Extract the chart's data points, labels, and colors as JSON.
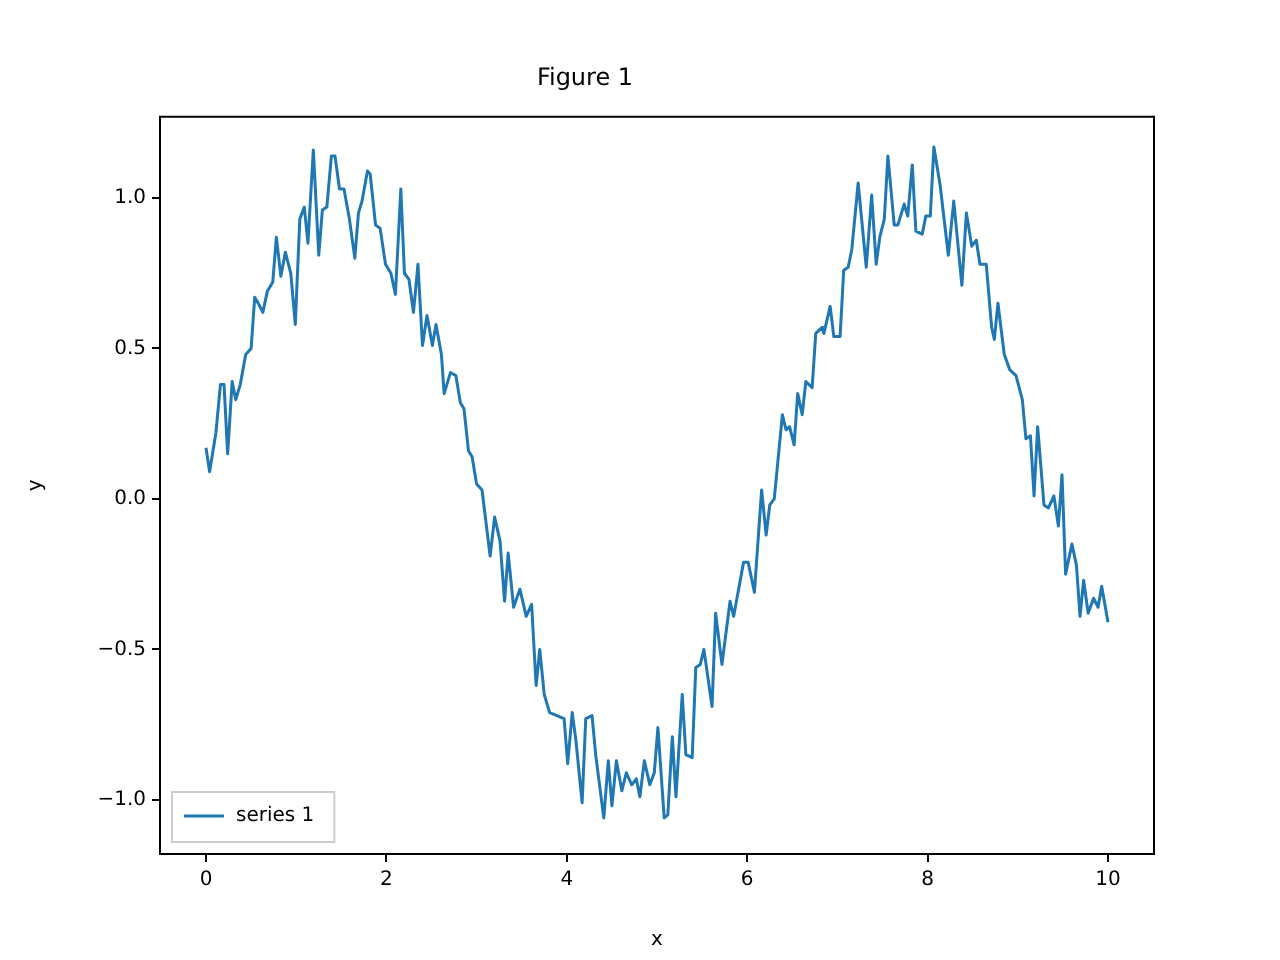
{
  "chart_data": {
    "type": "line",
    "title": "Figure 1",
    "xlabel": "x",
    "ylabel": "y",
    "xlim": [
      -0.51,
      10.51
    ],
    "ylim": [
      -1.18,
      1.27
    ],
    "xticks": [
      0,
      2,
      4,
      6,
      8,
      10
    ],
    "yticks": [
      {
        "value": -1,
        "label": "−1.0"
      },
      {
        "value": -0.5,
        "label": "−0.5"
      },
      {
        "value": 0,
        "label": "0.0"
      },
      {
        "value": 0.5,
        "label": "0.5"
      },
      {
        "value": 1,
        "label": "1.0"
      }
    ],
    "grid": false,
    "legend": "bottom left",
    "marker": "none",
    "line_style": "solid",
    "x": [
      0,
      0.04,
      0.11,
      0.16,
      0.2,
      0.24,
      0.29,
      0.33,
      0.38,
      0.44,
      0.5,
      0.54,
      0.58,
      0.63,
      0.68,
      0.74,
      0.78,
      0.83,
      0.88,
      0.94,
      0.99,
      1.04,
      1.09,
      1.13,
      1.19,
      1.25,
      1.29,
      1.34,
      1.39,
      1.43,
      1.48,
      1.53,
      1.59,
      1.65,
      1.69,
      1.73,
      1.79,
      1.82,
      1.88,
      1.93,
      1.99,
      2.05,
      2.1,
      2.16,
      2.2,
      2.25,
      2.3,
      2.35,
      2.4,
      2.45,
      2.51,
      2.55,
      2.61,
      2.64,
      2.71,
      2.77,
      2.82,
      2.86,
      2.91,
      2.95,
      3,
      3.06,
      3.15,
      3.2,
      3.26,
      3.31,
      3.35,
      3.41,
      3.48,
      3.55,
      3.61,
      3.66,
      3.7,
      3.75,
      3.81,
      3.97,
      4.01,
      4.06,
      4.1,
      4.17,
      4.21,
      4.28,
      4.32,
      4.41,
      4.46,
      4.5,
      4.55,
      4.61,
      4.66,
      4.72,
      4.77,
      4.81,
      4.86,
      4.92,
      4.97,
      5.01,
      5.08,
      5.12,
      5.17,
      5.21,
      5.28,
      5.32,
      5.39,
      5.43,
      5.48,
      5.52,
      5.61,
      5.65,
      5.72,
      5.81,
      5.85,
      5.96,
      6.01,
      6.08,
      6.16,
      6.21,
      6.25,
      6.3,
      6.39,
      6.43,
      6.47,
      6.52,
      6.56,
      6.61,
      6.65,
      6.72,
      6.76,
      6.83,
      6.85,
      6.92,
      6.96,
      7.03,
      7.07,
      7.12,
      7.16,
      7.23,
      7.32,
      7.38,
      7.43,
      7.47,
      7.52,
      7.56,
      7.63,
      7.67,
      7.74,
      7.78,
      7.83,
      7.87,
      7.94,
      7.98,
      8.03,
      8.07,
      8.14,
      8.23,
      8.29,
      8.38,
      8.43,
      8.49,
      8.54,
      8.58,
      8.65,
      8.71,
      8.74,
      8.78,
      8.85,
      8.91,
      8.98,
      9.05,
      9.09,
      9.14,
      9.18,
      9.22,
      9.29,
      9.34,
      9.4,
      9.45,
      9.49,
      9.53,
      9.6,
      9.65,
      9.69,
      9.73,
      9.78,
      9.84,
      9.89,
      9.93,
      10
    ],
    "series": [
      {
        "name": "series 1",
        "color": "#1f77b4",
        "values": [
          0.17,
          0.09,
          0.22,
          0.38,
          0.38,
          0.15,
          0.39,
          0.33,
          0.38,
          0.48,
          0.5,
          0.67,
          0.65,
          0.62,
          0.69,
          0.72,
          0.87,
          0.74,
          0.82,
          0.75,
          0.58,
          0.93,
          0.97,
          0.85,
          1.16,
          0.81,
          0.96,
          0.97,
          1.14,
          1.14,
          1.03,
          1.03,
          0.93,
          0.8,
          0.95,
          0.99,
          1.09,
          1.08,
          0.91,
          0.9,
          0.78,
          0.75,
          0.68,
          1.03,
          0.75,
          0.73,
          0.62,
          0.78,
          0.51,
          0.61,
          0.51,
          0.58,
          0.48,
          0.35,
          0.42,
          0.41,
          0.32,
          0.3,
          0.16,
          0.14,
          0.05,
          0.03,
          -0.19,
          -0.06,
          -0.14,
          -0.34,
          -0.18,
          -0.36,
          -0.3,
          -0.39,
          -0.35,
          -0.62,
          -0.5,
          -0.65,
          -0.71,
          -0.73,
          -0.88,
          -0.71,
          -0.8,
          -1.01,
          -0.73,
          -0.72,
          -0.85,
          -1.06,
          -0.87,
          -1.02,
          -0.87,
          -0.97,
          -0.91,
          -0.95,
          -0.93,
          -0.99,
          -0.87,
          -0.95,
          -0.91,
          -0.76,
          -1.06,
          -1.05,
          -0.79,
          -0.99,
          -0.65,
          -0.85,
          -0.86,
          -0.56,
          -0.55,
          -0.5,
          -0.69,
          -0.38,
          -0.55,
          -0.34,
          -0.39,
          -0.21,
          -0.21,
          -0.31,
          0.03,
          -0.12,
          -0.02,
          0,
          0.28,
          0.23,
          0.24,
          0.18,
          0.35,
          0.28,
          0.39,
          0.37,
          0.55,
          0.57,
          0.55,
          0.64,
          0.54,
          0.54,
          0.76,
          0.77,
          0.83,
          1.05,
          0.77,
          1.01,
          0.78,
          0.87,
          0.93,
          1.14,
          0.91,
          0.91,
          0.98,
          0.94,
          1.11,
          0.89,
          0.88,
          0.94,
          0.94,
          1.17,
          1.04,
          0.81,
          0.99,
          0.71,
          0.95,
          0.84,
          0.86,
          0.78,
          0.78,
          0.57,
          0.53,
          0.65,
          0.48,
          0.43,
          0.41,
          0.33,
          0.2,
          0.21,
          0.01,
          0.24,
          -0.02,
          -0.03,
          0.01,
          -0.09,
          0.08,
          -0.25,
          -0.15,
          -0.22,
          -0.39,
          -0.27,
          -0.38,
          -0.33,
          -0.36,
          -0.29,
          -0.41
        ]
      }
    ]
  }
}
